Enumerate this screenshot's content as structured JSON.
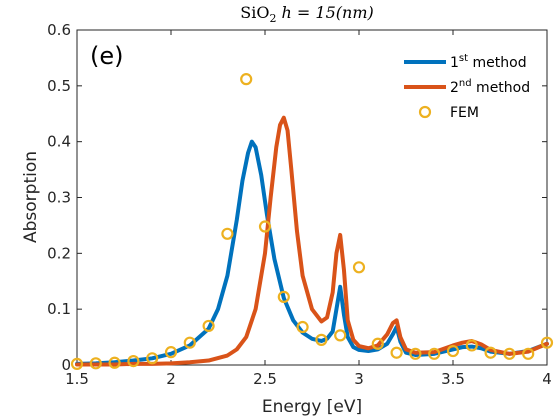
{
  "chart_data": {
    "type": "line",
    "title": {
      "main": "SiO",
      "sub": "2",
      "rest": " h = 15(nm)"
    },
    "panel_label": "(e)",
    "xlabel": "Energy [eV]",
    "ylabel": "Absorption",
    "xlim": [
      1.5,
      4.0
    ],
    "ylim": [
      0,
      0.6
    ],
    "xticks": [
      1.5,
      2,
      2.5,
      3,
      3.5,
      4
    ],
    "xtick_labels": [
      "1.5",
      "2",
      "2.5",
      "3",
      "3.5",
      "4"
    ],
    "yticks": [
      0,
      0.1,
      0.2,
      0.3,
      0.4,
      0.5,
      0.6
    ],
    "ytick_labels": [
      "0",
      "0.1",
      "0.2",
      "0.3",
      "0.4",
      "0.5",
      "0.6"
    ],
    "grid": false,
    "legend_position": "top-right",
    "series": [
      {
        "name": "1st method",
        "label_base": "1",
        "label_sup": "st",
        "label_rest": " method",
        "color": "#0072BD",
        "style": "line",
        "x": [
          1.5,
          1.6,
          1.7,
          1.8,
          1.9,
          2.0,
          2.1,
          2.2,
          2.25,
          2.3,
          2.35,
          2.38,
          2.41,
          2.43,
          2.45,
          2.48,
          2.51,
          2.55,
          2.6,
          2.65,
          2.7,
          2.75,
          2.8,
          2.83,
          2.86,
          2.88,
          2.9,
          2.92,
          2.94,
          2.97,
          3.0,
          3.05,
          3.1,
          3.15,
          3.18,
          3.2,
          3.22,
          3.25,
          3.3,
          3.4,
          3.5,
          3.55,
          3.6,
          3.65,
          3.7,
          3.8,
          3.9,
          4.0
        ],
        "y": [
          0.002,
          0.003,
          0.005,
          0.008,
          0.012,
          0.02,
          0.035,
          0.065,
          0.1,
          0.16,
          0.26,
          0.33,
          0.38,
          0.4,
          0.39,
          0.34,
          0.27,
          0.19,
          0.12,
          0.08,
          0.058,
          0.047,
          0.043,
          0.047,
          0.06,
          0.1,
          0.14,
          0.09,
          0.05,
          0.032,
          0.027,
          0.025,
          0.028,
          0.038,
          0.055,
          0.068,
          0.042,
          0.022,
          0.018,
          0.02,
          0.028,
          0.032,
          0.033,
          0.03,
          0.024,
          0.02,
          0.025,
          0.038
        ]
      },
      {
        "name": "2nd method",
        "label_base": "2",
        "label_sup": "nd",
        "label_rest": " method",
        "color": "#D95319",
        "style": "line",
        "x": [
          1.5,
          1.6,
          1.7,
          1.8,
          1.9,
          2.0,
          2.1,
          2.2,
          2.3,
          2.35,
          2.4,
          2.45,
          2.5,
          2.53,
          2.56,
          2.58,
          2.6,
          2.62,
          2.64,
          2.67,
          2.7,
          2.75,
          2.8,
          2.83,
          2.86,
          2.88,
          2.9,
          2.92,
          2.94,
          2.97,
          3.0,
          3.05,
          3.1,
          3.15,
          3.18,
          3.2,
          3.22,
          3.25,
          3.3,
          3.4,
          3.5,
          3.55,
          3.6,
          3.65,
          3.7,
          3.8,
          3.9,
          4.0
        ],
        "y": [
          0.001,
          0.001,
          0.001,
          0.002,
          0.002,
          0.003,
          0.005,
          0.008,
          0.017,
          0.028,
          0.05,
          0.1,
          0.2,
          0.3,
          0.39,
          0.43,
          0.443,
          0.42,
          0.35,
          0.24,
          0.16,
          0.1,
          0.078,
          0.085,
          0.13,
          0.2,
          0.233,
          0.17,
          0.08,
          0.045,
          0.034,
          0.03,
          0.035,
          0.055,
          0.075,
          0.08,
          0.05,
          0.028,
          0.022,
          0.023,
          0.035,
          0.04,
          0.043,
          0.037,
          0.027,
          0.02,
          0.024,
          0.038
        ]
      },
      {
        "name": "FEM",
        "label_base": "FEM",
        "label_sup": "",
        "label_rest": "",
        "color": "#EDB120",
        "style": "markers",
        "x": [
          1.5,
          1.6,
          1.7,
          1.8,
          1.9,
          2.0,
          2.1,
          2.2,
          2.3,
          2.4,
          2.5,
          2.6,
          2.7,
          2.8,
          2.9,
          3.0,
          3.1,
          3.2,
          3.3,
          3.4,
          3.5,
          3.6,
          3.7,
          3.8,
          3.9,
          4.0
        ],
        "y": [
          0.002,
          0.003,
          0.004,
          0.007,
          0.012,
          0.023,
          0.04,
          0.07,
          0.235,
          0.512,
          0.248,
          0.122,
          0.068,
          0.045,
          0.053,
          0.175,
          0.038,
          0.022,
          0.02,
          0.02,
          0.025,
          0.035,
          0.022,
          0.02,
          0.02,
          0.04
        ]
      }
    ]
  }
}
